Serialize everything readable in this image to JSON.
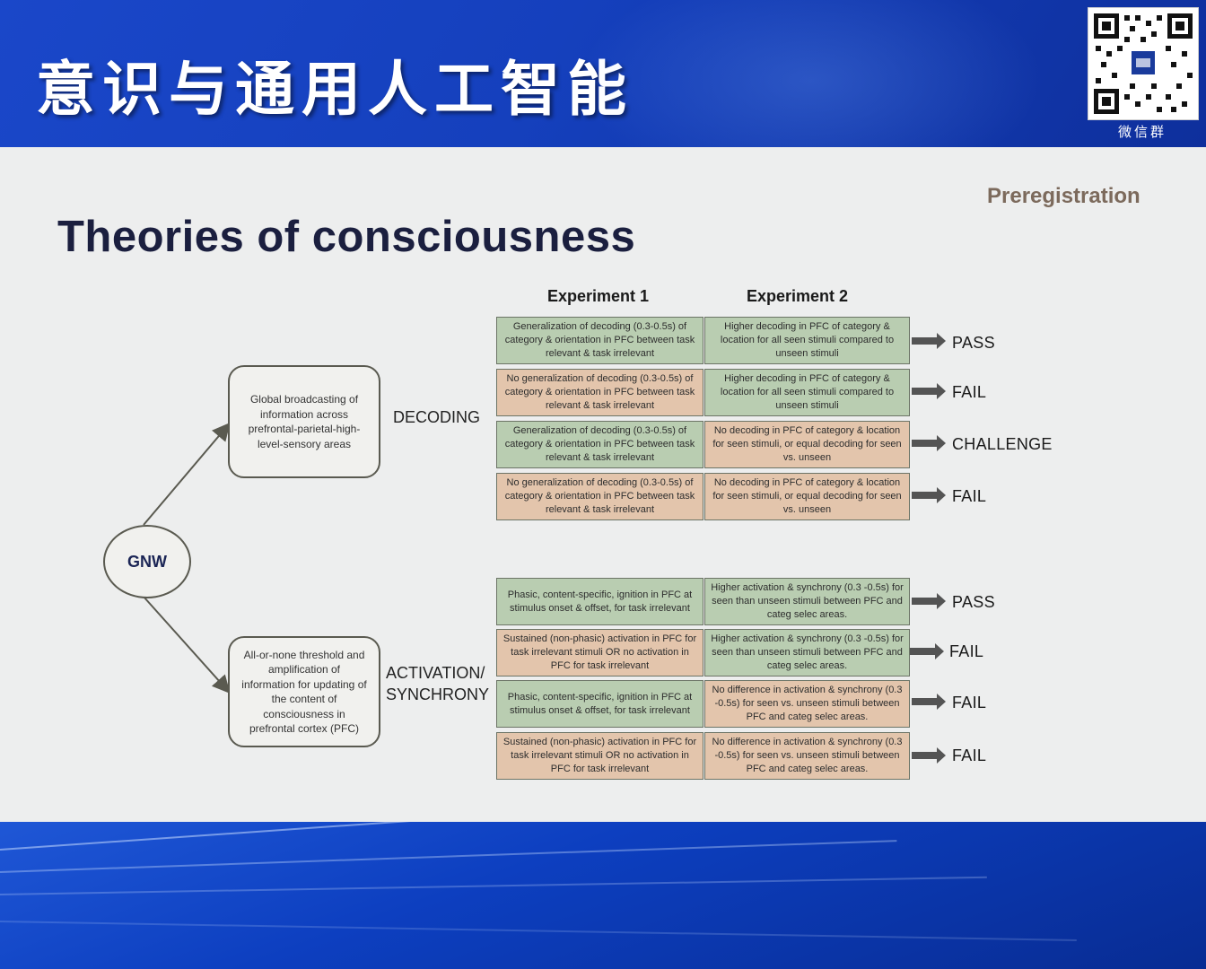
{
  "header": {
    "title": "意识与通用人工智能",
    "qr_label": "微信群"
  },
  "slide": {
    "tag": "Preregistration",
    "heading": "Theories of consciousness",
    "columns": [
      "Experiment 1",
      "Experiment 2"
    ],
    "root": "GNW",
    "branches": [
      {
        "theory": "Global broadcasting of information across prefrontal-parietal-high-level-sensory areas",
        "label": "DECODING",
        "rows": [
          {
            "exp1": "Generalization of decoding (0.3-0.5s) of category & orientation in PFC between task relevant & task irrelevant",
            "exp1_color": "green",
            "exp2": "Higher decoding in PFC of category & location for all seen stimuli compared to unseen stimuli",
            "exp2_color": "green",
            "outcome": "PASS"
          },
          {
            "exp1": "No generalization of decoding (0.3-0.5s) of category & orientation in PFC between task relevant & task irrelevant",
            "exp1_color": "orange",
            "exp2": "Higher decoding in PFC of category & location for all seen stimuli compared to unseen stimuli",
            "exp2_color": "green",
            "outcome": "FAIL"
          },
          {
            "exp1": "Generalization of decoding (0.3-0.5s) of category & orientation in PFC between task relevant & task irrelevant",
            "exp1_color": "green",
            "exp2": "No decoding in PFC of category & location for seen stimuli, or equal decoding for seen vs. unseen",
            "exp2_color": "orange",
            "outcome": "CHALLENGE"
          },
          {
            "exp1": "No generalization of decoding (0.3-0.5s) of category & orientation in PFC between task relevant & task irrelevant",
            "exp1_color": "orange",
            "exp2": "No decoding in PFC of category & location for seen stimuli, or equal decoding for seen vs. unseen",
            "exp2_color": "orange",
            "outcome": "FAIL"
          }
        ]
      },
      {
        "theory": "All-or-none threshold and amplification of information for updating of the content of consciousness in prefrontal cortex (PFC)",
        "label_line1": "ACTIVATION/",
        "label_line2": "SYNCHRONY",
        "rows": [
          {
            "exp1": "Phasic, content-specific, ignition in PFC at stimulus onset & offset, for task irrelevant",
            "exp1_color": "green",
            "exp2": "Higher activation & synchrony (0.3 -0.5s) for seen than unseen stimuli between PFC and categ selec areas.",
            "exp2_color": "green",
            "outcome": "PASS"
          },
          {
            "exp1": "Sustained (non-phasic) activation in PFC for task irrelevant stimuli OR no activation in PFC for task irrelevant",
            "exp1_color": "orange",
            "exp2": "Higher activation & synchrony (0.3 -0.5s) for seen than unseen stimuli between PFC and categ selec areas.",
            "exp2_color": "green",
            "outcome": "FAIL"
          },
          {
            "exp1": "Phasic, content-specific, ignition in PFC at stimulus onset & offset, for task irrelevant",
            "exp1_color": "green",
            "exp2": "No difference in activation & synchrony (0.3 -0.5s) for seen vs. unseen stimuli between PFC and categ selec areas.",
            "exp2_color": "orange",
            "outcome": "FAIL"
          },
          {
            "exp1": "Sustained (non-phasic) activation in PFC for task irrelevant stimuli OR no activation in PFC for task irrelevant",
            "exp1_color": "orange",
            "exp2": "No difference in activation & synchrony (0.3 -0.5s) for seen vs. unseen stimuli between PFC and categ selec areas.",
            "exp2_color": "orange",
            "outcome": "FAIL"
          }
        ]
      }
    ]
  }
}
